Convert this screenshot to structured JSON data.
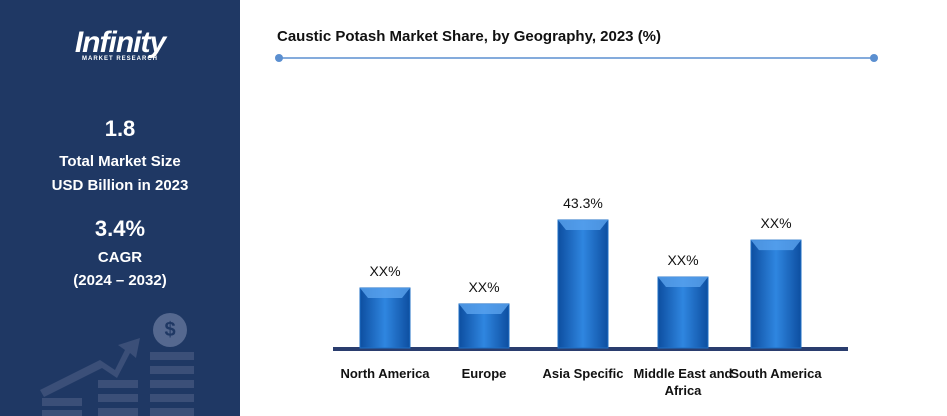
{
  "side": {
    "logo": "Infinity",
    "logo_sub": "MARKET RESEARCH",
    "market_size": "1.8",
    "market_size_label_1": "Total Market Size",
    "market_size_label_2": "USD Billion in 2023",
    "cagr": "3.4%",
    "cagr_label_1": "CAGR",
    "cagr_label_2": "(2024 – 2032)"
  },
  "chart_data": {
    "type": "bar",
    "title": "Caustic Potash Market Share, by Geography, 2023 (%)",
    "categories": [
      "North America",
      "Europe",
      "Asia Specific",
      "Middle East and Africa",
      "South America"
    ],
    "values": [
      20.3,
      14.9,
      43.3,
      24.0,
      36.5
    ],
    "value_labels": [
      "XX%",
      "XX%",
      "43.3%",
      "XX%",
      "XX%"
    ],
    "color": "#1f6fc5"
  }
}
